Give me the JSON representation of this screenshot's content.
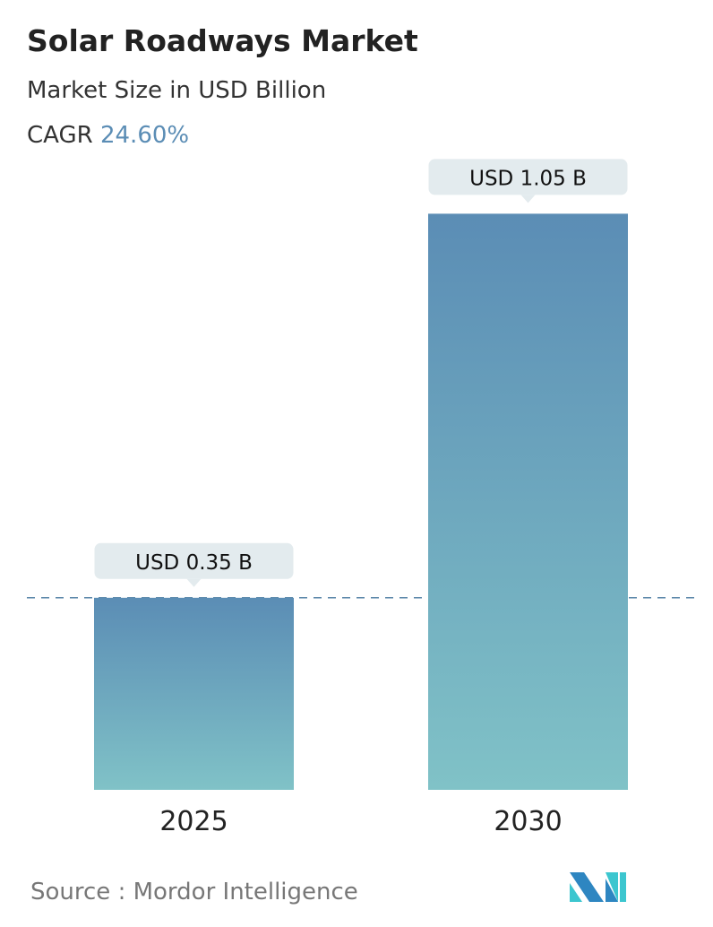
{
  "title": "Solar Roadways Market",
  "subtitle": "Market Size in USD Billion",
  "cagr_label": "CAGR",
  "cagr_value": "24.60%",
  "source": "Source :  Mordor Intelligence",
  "colors": {
    "bar_top": "#5b8db5",
    "bar_bottom": "#80c2c7",
    "accent": "#5b8db5",
    "label_bg": "#e3ebee"
  },
  "chart_data": {
    "type": "bar",
    "categories": [
      "2025",
      "2030"
    ],
    "values": [
      0.35,
      1.05
    ],
    "data_labels": [
      "USD 0.35 B",
      "USD 1.05 B"
    ],
    "ylabel": "Market Size in USD Billion",
    "reference_line": 0.35,
    "grid": false
  }
}
